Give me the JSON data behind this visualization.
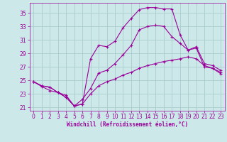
{
  "xlabel": "Windchill (Refroidissement éolien,°C)",
  "bg_color": "#cce8e8",
  "grid_color": "#aacccc",
  "line_color": "#990099",
  "xlim": [
    -0.5,
    23.5
  ],
  "ylim": [
    20.5,
    36.5
  ],
  "yticks": [
    21,
    23,
    25,
    27,
    29,
    31,
    33,
    35
  ],
  "xticks": [
    0,
    1,
    2,
    3,
    4,
    5,
    6,
    7,
    8,
    9,
    10,
    11,
    12,
    13,
    14,
    15,
    16,
    17,
    18,
    19,
    20,
    21,
    22,
    23
  ],
  "line1_x": [
    0,
    1,
    2,
    3,
    4,
    5,
    6,
    7,
    8,
    9,
    10,
    11,
    12,
    13,
    14,
    15,
    16,
    17,
    18,
    19,
    20,
    21,
    22,
    23
  ],
  "line1_y": [
    24.8,
    24.2,
    24.0,
    23.2,
    22.8,
    21.2,
    21.5,
    23.0,
    24.2,
    24.8,
    25.2,
    25.8,
    26.2,
    26.8,
    27.2,
    27.5,
    27.8,
    28.0,
    28.2,
    28.5,
    28.2,
    27.2,
    26.8,
    26.2
  ],
  "line2_x": [
    0,
    1,
    2,
    3,
    4,
    5,
    6,
    7,
    8,
    9,
    10,
    11,
    12,
    13,
    14,
    15,
    16,
    17,
    18,
    19,
    20,
    21,
    22,
    23
  ],
  "line2_y": [
    24.8,
    24.1,
    23.5,
    23.2,
    22.5,
    21.2,
    21.5,
    28.2,
    30.2,
    30.0,
    30.8,
    32.8,
    34.2,
    35.5,
    35.8,
    35.8,
    35.6,
    35.6,
    31.8,
    29.5,
    30.0,
    27.5,
    27.2,
    26.5
  ],
  "line3_x": [
    0,
    1,
    2,
    3,
    4,
    5,
    6,
    7,
    8,
    9,
    10,
    11,
    12,
    13,
    14,
    15,
    16,
    17,
    18,
    19,
    20,
    21,
    22,
    23
  ],
  "line3_y": [
    24.8,
    24.2,
    24.0,
    23.2,
    22.5,
    21.2,
    22.2,
    23.8,
    26.1,
    26.5,
    27.5,
    28.8,
    30.2,
    32.5,
    33.0,
    33.2,
    33.0,
    31.5,
    30.5,
    29.5,
    29.8,
    27.0,
    26.8,
    26.0
  ]
}
